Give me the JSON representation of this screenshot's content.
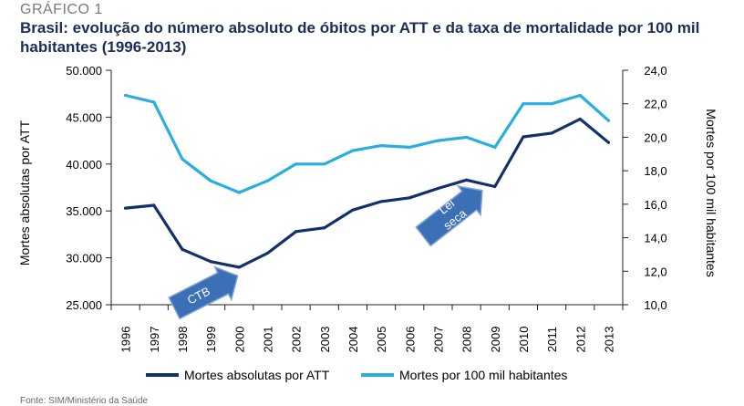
{
  "header": {
    "kicker": "GRÁFICO 1",
    "title": "Brasil: evolução do número absoluto de óbitos por ATT e da taxa de mortalidade por 100 mil habitantes (1996-2013)"
  },
  "source": "Fonte: SIM/Ministério da Saúde",
  "colors": {
    "dark_series": "#14306b",
    "light_series": "#2aaee0",
    "arrow_fill": "#3b6fb6",
    "arrow_stroke": "#7fa4d6"
  },
  "chart_data": {
    "type": "line",
    "x": [
      "1996",
      "1997",
      "1998",
      "1999",
      "2000",
      "2001",
      "2002",
      "2003",
      "2004",
      "2005",
      "2006",
      "2007",
      "2008",
      "2009",
      "2010",
      "2011",
      "2012",
      "2013"
    ],
    "ylabel_left": "Mortes absolutas por ATT",
    "ylabel_right": "Mortes por 100 mil habitantes",
    "ylim_left": [
      25000,
      50000
    ],
    "ylim_right": [
      10,
      24
    ],
    "yticks_left": [
      "25.000",
      "30.000",
      "35.000",
      "40.000",
      "45.000",
      "50.000"
    ],
    "yticks_right": [
      "10,0",
      "12,0",
      "14,0",
      "16,0",
      "18,0",
      "20,0",
      "22,0",
      "24,0"
    ],
    "series": [
      {
        "name": "Mortes absolutas por ATT",
        "axis": "left",
        "color": "#14306b",
        "values": [
          35300,
          35600,
          30900,
          29600,
          29000,
          30500,
          32800,
          33200,
          35100,
          36000,
          36400,
          37400,
          38300,
          37600,
          42900,
          43300,
          44800,
          42300
        ]
      },
      {
        "name": "Mortes por 100 mil habitantes",
        "axis": "right",
        "color": "#2aaee0",
        "values": [
          22.5,
          22.1,
          18.7,
          17.4,
          16.7,
          17.4,
          18.4,
          18.4,
          19.2,
          19.5,
          19.4,
          19.8,
          20.0,
          19.4,
          22.0,
          22.0,
          22.5,
          21.0
        ]
      }
    ],
    "annotations": [
      {
        "text": "CTB",
        "year": "1998"
      },
      {
        "text": "Lei",
        "text2": "seca",
        "year": "2008"
      }
    ],
    "legend_position": "bottom",
    "grid": false
  }
}
